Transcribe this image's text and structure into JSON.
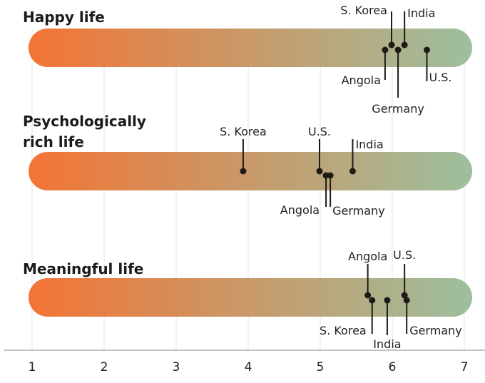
{
  "chart_data": {
    "type": "scatter",
    "xlim": [
      1,
      7
    ],
    "x_ticks": [
      "1",
      "2",
      "3",
      "4",
      "5",
      "6",
      "7"
    ],
    "grid": "vertical",
    "colors": {
      "scale_low": "#f37435",
      "scale_high": "#9dbf9e",
      "dot": "#1f1a17"
    },
    "rows": [
      {
        "title_lines": [
          "Happy life"
        ],
        "points": [
          {
            "country": "Angola",
            "value": 5.9
          },
          {
            "country": "S. Korea",
            "value": 5.99
          },
          {
            "country": "Germany",
            "value": 6.08
          },
          {
            "country": "India",
            "value": 6.17
          },
          {
            "country": "U.S.",
            "value": 6.48
          }
        ]
      },
      {
        "title_lines": [
          "Psychologically",
          "rich life"
        ],
        "points": [
          {
            "country": "S. Korea",
            "value": 3.93
          },
          {
            "country": "U.S.",
            "value": 4.99
          },
          {
            "country": "Angola",
            "value": 5.08
          },
          {
            "country": "Germany",
            "value": 5.14
          },
          {
            "country": "India",
            "value": 5.45
          }
        ]
      },
      {
        "title_lines": [
          "Meaningful life"
        ],
        "points": [
          {
            "country": "Angola",
            "value": 5.66
          },
          {
            "country": "S. Korea",
            "value": 5.72
          },
          {
            "country": "India",
            "value": 5.93
          },
          {
            "country": "U.S.",
            "value": 6.17
          },
          {
            "country": "Germany",
            "value": 6.2
          }
        ]
      }
    ]
  }
}
